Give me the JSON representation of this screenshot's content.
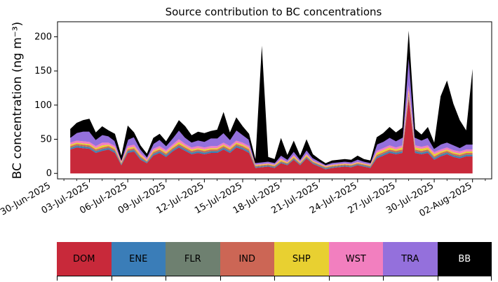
{
  "chart_data": {
    "type": "area",
    "stacked": true,
    "title": "Source contribution to BC concentrations",
    "xlabel": "",
    "ylabel": "BC concentration (ng m⁻³)",
    "ylim": [
      -8,
      222
    ],
    "yticks": [
      0,
      50,
      100,
      150,
      200
    ],
    "xlim_days": [
      -0.5,
      33.5
    ],
    "x_start_date": "2025-07-01",
    "xticks": [
      {
        "day": -1,
        "label": "30-Jun-2025"
      },
      {
        "day": 2,
        "label": "03-Jul-2025"
      },
      {
        "day": 5,
        "label": "06-Jul-2025"
      },
      {
        "day": 8,
        "label": "09-Jul-2025"
      },
      {
        "day": 11,
        "label": "12-Jul-2025"
      },
      {
        "day": 14,
        "label": "15-Jul-2025"
      },
      {
        "day": 17,
        "label": "18-Jul-2025"
      },
      {
        "day": 20,
        "label": "21-Jul-2025"
      },
      {
        "day": 23,
        "label": "24-Jul-2025"
      },
      {
        "day": 26,
        "label": "27-Jul-2025"
      },
      {
        "day": 29,
        "label": "30-Jul-2025"
      },
      {
        "day": 32,
        "label": "02-Aug-2025"
      }
    ],
    "x_days": [
      0.5,
      1.0,
      1.5,
      2.0,
      2.5,
      3.0,
      3.5,
      4.0,
      4.5,
      5.0,
      5.5,
      6.0,
      6.5,
      7.0,
      7.5,
      8.0,
      8.5,
      9.0,
      9.5,
      10.0,
      10.5,
      11.0,
      11.5,
      12.0,
      12.5,
      13.0,
      13.5,
      14.0,
      14.5,
      15.0,
      15.5,
      16.0,
      16.5,
      17.0,
      17.5,
      18.0,
      18.5,
      19.0,
      19.5,
      20.0,
      20.5,
      21.0,
      21.5,
      22.0,
      22.5,
      23.0,
      23.5,
      24.0,
      24.5,
      25.0,
      25.5,
      26.0,
      26.5,
      27.0,
      27.5,
      28.0,
      28.5,
      29.0,
      29.5,
      30.0,
      30.5,
      31.0,
      31.5,
      32.0
    ],
    "series": [
      {
        "name": "DOM",
        "color": "#c8293a",
        "values": [
          35,
          38,
          37,
          36,
          30,
          33,
          35,
          30,
          12,
          30,
          32,
          20,
          15,
          26,
          30,
          24,
          32,
          38,
          33,
          28,
          30,
          28,
          30,
          30,
          35,
          30,
          38,
          35,
          30,
          8,
          9,
          10,
          8,
          15,
          12,
          20,
          12,
          22,
          14,
          10,
          6,
          8,
          9,
          10,
          9,
          12,
          10,
          8,
          22,
          26,
          30,
          28,
          30,
          110,
          30,
          28,
          30,
          20,
          25,
          28,
          24,
          22,
          25,
          25
        ]
      },
      {
        "name": "ENE",
        "color": "#3a7db8",
        "values": [
          2,
          2,
          2,
          2,
          2,
          2,
          2,
          2,
          1,
          2,
          2,
          2,
          1,
          2,
          2,
          2,
          2,
          2,
          2,
          2,
          2,
          2,
          2,
          2,
          2,
          2,
          2,
          2,
          2,
          1,
          1,
          1,
          1,
          1,
          1,
          1,
          1,
          1,
          1,
          1,
          1,
          1,
          1,
          1,
          1,
          1,
          1,
          1,
          2,
          2,
          2,
          2,
          2,
          3,
          2,
          2,
          2,
          2,
          2,
          2,
          2,
          2,
          2,
          2
        ]
      },
      {
        "name": "FLR",
        "color": "#6e8070",
        "values": [
          1,
          1,
          1,
          1,
          1,
          1,
          1,
          1,
          1,
          1,
          1,
          1,
          1,
          1,
          1,
          1,
          1,
          1,
          1,
          1,
          1,
          1,
          1,
          1,
          1,
          1,
          1,
          1,
          1,
          1,
          1,
          1,
          1,
          1,
          1,
          1,
          1,
          1,
          1,
          1,
          1,
          1,
          1,
          1,
          1,
          1,
          1,
          1,
          1,
          1,
          1,
          1,
          1,
          1,
          1,
          1,
          1,
          1,
          1,
          1,
          1,
          1,
          1,
          1
        ]
      },
      {
        "name": "IND",
        "color": "#cc6655",
        "values": [
          2,
          2,
          2,
          2,
          2,
          2,
          2,
          2,
          1,
          2,
          2,
          2,
          1,
          2,
          2,
          2,
          2,
          2,
          2,
          2,
          2,
          2,
          2,
          2,
          2,
          2,
          2,
          2,
          2,
          1,
          1,
          1,
          1,
          1,
          1,
          1,
          1,
          1,
          1,
          1,
          1,
          1,
          1,
          1,
          1,
          1,
          1,
          1,
          2,
          2,
          2,
          2,
          2,
          3,
          2,
          2,
          2,
          2,
          2,
          2,
          2,
          2,
          2,
          2
        ]
      },
      {
        "name": "SHP",
        "color": "#e8d031",
        "values": [
          2,
          2,
          2,
          2,
          2,
          3,
          2,
          2,
          1,
          2,
          2,
          2,
          1,
          2,
          2,
          2,
          2,
          3,
          2,
          2,
          2,
          2,
          2,
          2,
          2,
          2,
          2,
          2,
          2,
          1,
          1,
          1,
          1,
          2,
          1,
          2,
          1,
          2,
          1,
          1,
          1,
          1,
          1,
          1,
          1,
          1,
          1,
          1,
          3,
          3,
          3,
          2,
          3,
          4,
          3,
          3,
          3,
          3,
          2,
          2,
          2,
          2,
          2,
          2
        ]
      },
      {
        "name": "WST",
        "color": "#f27fbf",
        "values": [
          3,
          3,
          3,
          3,
          3,
          4,
          3,
          3,
          2,
          3,
          3,
          3,
          2,
          3,
          3,
          3,
          3,
          4,
          3,
          3,
          3,
          3,
          3,
          3,
          3,
          3,
          3,
          3,
          3,
          1,
          1,
          1,
          1,
          2,
          1,
          2,
          1,
          2,
          1,
          1,
          1,
          1,
          1,
          1,
          1,
          1,
          1,
          1,
          3,
          3,
          3,
          3,
          3,
          8,
          3,
          3,
          3,
          3,
          3,
          3,
          3,
          3,
          3,
          3
        ]
      },
      {
        "name": "TRA",
        "color": "#9470dc",
        "values": [
          8,
          12,
          15,
          16,
          10,
          12,
          10,
          8,
          3,
          10,
          12,
          6,
          4,
          8,
          10,
          7,
          10,
          14,
          10,
          8,
          9,
          9,
          12,
          12,
          15,
          10,
          16,
          12,
          10,
          3,
          3,
          3,
          3,
          5,
          4,
          6,
          4,
          6,
          4,
          3,
          2,
          3,
          3,
          3,
          3,
          4,
          3,
          3,
          10,
          10,
          12,
          10,
          12,
          50,
          12,
          10,
          12,
          6,
          8,
          8,
          8,
          6,
          8,
          8
        ]
      },
      {
        "name": "BB",
        "color": "#000000",
        "values": [
          12,
          14,
          16,
          18,
          10,
          12,
          8,
          10,
          5,
          20,
          6,
          5,
          4,
          8,
          8,
          6,
          10,
          14,
          16,
          10,
          12,
          12,
          10,
          12,
          30,
          10,
          18,
          12,
          8,
          5,
          170,
          6,
          5,
          25,
          6,
          15,
          5,
          15,
          5,
          3,
          2,
          3,
          3,
          3,
          3,
          5,
          3,
          3,
          10,
          12,
          15,
          12,
          14,
          30,
          12,
          8,
          15,
          8,
          70,
          90,
          60,
          40,
          20,
          110
        ]
      }
    ]
  },
  "legend": [
    {
      "label": "DOM",
      "color": "#c8293a",
      "text_color": "#000000"
    },
    {
      "label": "ENE",
      "color": "#3a7db8",
      "text_color": "#000000"
    },
    {
      "label": "FLR",
      "color": "#6e8070",
      "text_color": "#000000"
    },
    {
      "label": "IND",
      "color": "#cc6655",
      "text_color": "#000000"
    },
    {
      "label": "SHP",
      "color": "#e8d031",
      "text_color": "#000000"
    },
    {
      "label": "WST",
      "color": "#f27fbf",
      "text_color": "#000000"
    },
    {
      "label": "TRA",
      "color": "#9470dc",
      "text_color": "#000000"
    },
    {
      "label": "BB",
      "color": "#000000",
      "text_color": "#ffffff"
    }
  ]
}
